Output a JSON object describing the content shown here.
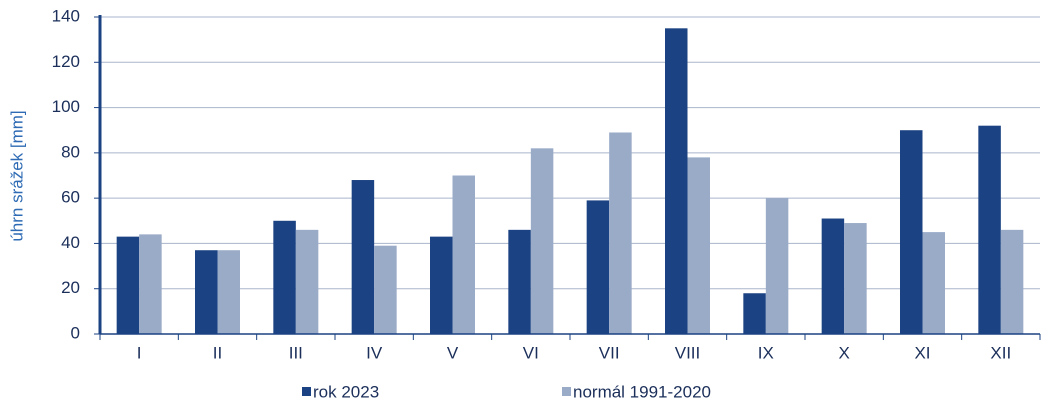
{
  "chart_data": {
    "type": "bar",
    "y_label": "úhrn srážek [mm]",
    "categories": [
      "I",
      "II",
      "III",
      "IV",
      "V",
      "VI",
      "VII",
      "VIII",
      "IX",
      "X",
      "XI",
      "XII"
    ],
    "series": [
      {
        "name": "rok 2023",
        "color": "#1b4282",
        "values": [
          43,
          37,
          50,
          68,
          43,
          46,
          59,
          135,
          18,
          51,
          90,
          92
        ]
      },
      {
        "name": "normál 1991-2020",
        "color": "#9aabc8",
        "values": [
          44,
          37,
          46,
          39,
          70,
          82,
          89,
          78,
          60,
          49,
          45,
          46
        ]
      }
    ],
    "ylim": [
      0,
      140
    ],
    "yticks": [
      0,
      20,
      40,
      60,
      80,
      100,
      120,
      140
    ],
    "grid": true
  }
}
